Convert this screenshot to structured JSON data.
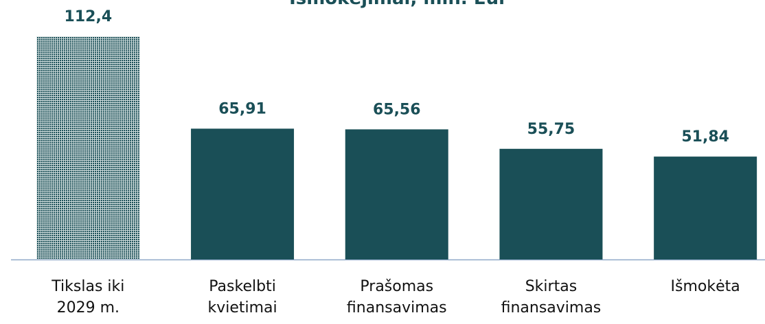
{
  "chart_data": {
    "type": "bar",
    "title": "Išmokėjimai, mln. Eur",
    "categories": [
      "Tikslas iki 2029 m.",
      "Paskelbti kvietimai",
      "Prašomas finansavimas",
      "Skirtas finansavimas",
      "Išmokėta"
    ],
    "values": [
      112.4,
      65.91,
      65.56,
      55.75,
      51.84
    ],
    "value_labels": [
      "112,4",
      "65,91",
      "65,56",
      "55,75",
      "51,84"
    ],
    "color": "#1a4f57"
  }
}
